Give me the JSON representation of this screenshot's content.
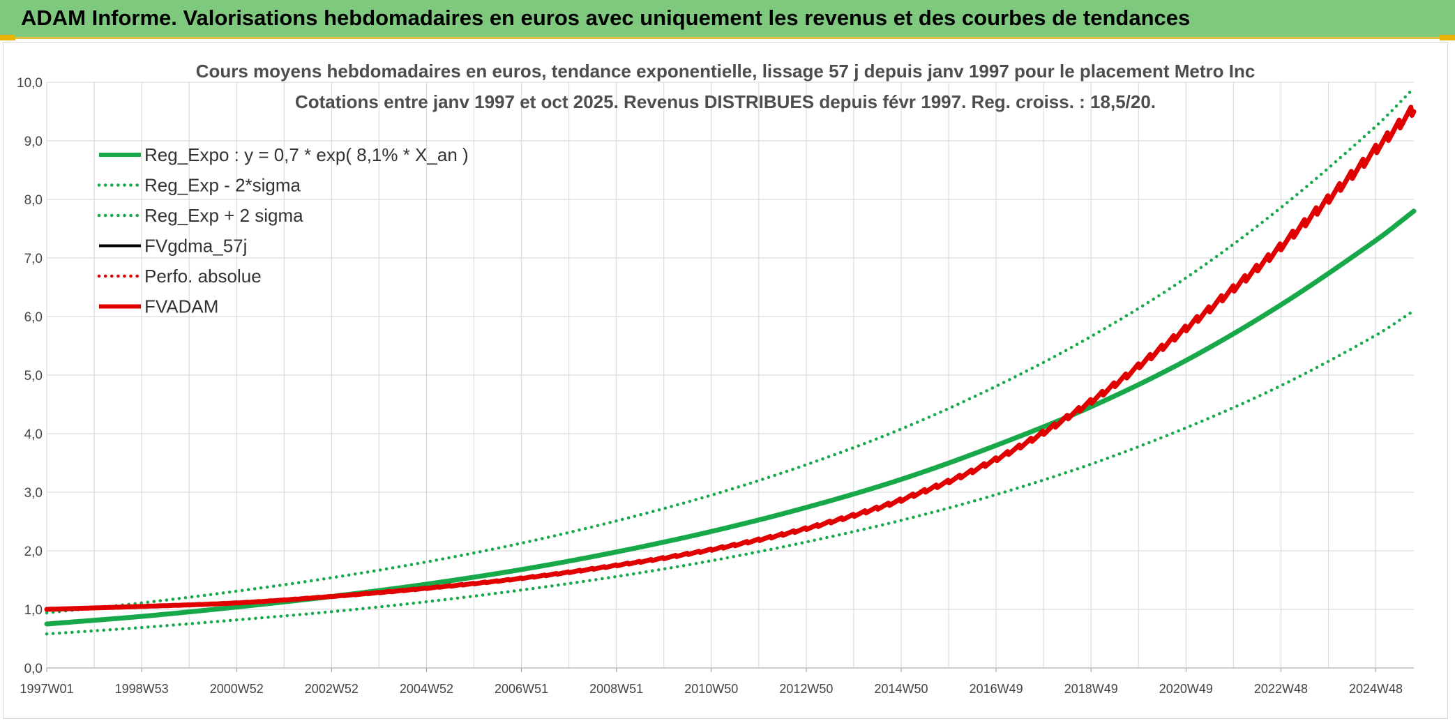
{
  "header": {
    "title": "ADAM Informe. Valorisations hebdomadaires en euros avec uniquement les revenus et des courbes de tendances"
  },
  "colors": {
    "banner": "#7fc97f",
    "green": "#17a84a",
    "red": "#e00000",
    "black": "#000000",
    "grid": "#dcdcdc"
  },
  "chart_data": {
    "type": "line",
    "title": "Cours moyens hebdomadaires en euros, tendance exponentielle, lissage 57 j depuis janv 1997 pour le placement Metro Inc",
    "subtitle": "Cotations entre janv 1997 et oct 2025. Revenus DISTRIBUES depuis févr 1997. Reg. croiss. : 18,5/20.",
    "xlabel": "",
    "ylabel": "",
    "ylim": [
      0,
      10
    ],
    "xlim": [
      1997.0,
      2025.8
    ],
    "grid": true,
    "legend_position": "top-left",
    "y_ticks": [
      "0,0",
      "1,0",
      "2,0",
      "3,0",
      "4,0",
      "5,0",
      "6,0",
      "7,0",
      "8,0",
      "9,0",
      "10,0"
    ],
    "x_ticks": [
      {
        "label": "1997W01",
        "x": 1997.0
      },
      {
        "label": "1998W53",
        "x": 1999.0
      },
      {
        "label": "2000W52",
        "x": 2001.0
      },
      {
        "label": "2002W52",
        "x": 2003.0
      },
      {
        "label": "2004W52",
        "x": 2005.0
      },
      {
        "label": "2006W51",
        "x": 2007.0
      },
      {
        "label": "2008W51",
        "x": 2009.0
      },
      {
        "label": "2010W50",
        "x": 2011.0
      },
      {
        "label": "2012W50",
        "x": 2013.0
      },
      {
        "label": "2014W50",
        "x": 2015.0
      },
      {
        "label": "2016W49",
        "x": 2017.0
      },
      {
        "label": "2018W49",
        "x": 2019.0
      },
      {
        "label": "2020W49",
        "x": 2021.0
      },
      {
        "label": "2022W48",
        "x": 2023.0
      },
      {
        "label": "2024W48",
        "x": 2025.0
      }
    ],
    "series": [
      {
        "name": "Reg_Expo : y = 0,7 * exp( 8,1% *  X_an )",
        "style": "solid-thick",
        "color": "#17a84a",
        "x": [
          1997.0,
          1999.0,
          2001.0,
          2003.0,
          2005.0,
          2007.0,
          2009.0,
          2011.0,
          2013.0,
          2015.0,
          2017.0,
          2019.0,
          2021.0,
          2023.0,
          2025.0,
          2025.8
        ],
        "values": [
          0.75,
          0.88,
          1.04,
          1.22,
          1.43,
          1.68,
          1.98,
          2.33,
          2.74,
          3.22,
          3.8,
          4.46,
          5.25,
          6.2,
          7.3,
          7.8
        ]
      },
      {
        "name": "Reg_Exp - 2*sigma",
        "style": "dotted",
        "color": "#17a84a",
        "x": [
          1997.0,
          1999.0,
          2001.0,
          2003.0,
          2005.0,
          2007.0,
          2009.0,
          2011.0,
          2013.0,
          2015.0,
          2017.0,
          2019.0,
          2021.0,
          2023.0,
          2025.0,
          2025.8
        ],
        "values": [
          0.58,
          0.69,
          0.82,
          0.96,
          1.13,
          1.33,
          1.56,
          1.83,
          2.15,
          2.52,
          2.96,
          3.48,
          4.1,
          4.82,
          5.68,
          6.1
        ]
      },
      {
        "name": "Reg_Exp + 2 sigma",
        "style": "dotted",
        "color": "#17a84a",
        "x": [
          1997.0,
          1999.0,
          2001.0,
          2003.0,
          2005.0,
          2007.0,
          2009.0,
          2011.0,
          2013.0,
          2015.0,
          2017.0,
          2019.0,
          2021.0,
          2023.0,
          2025.0,
          2025.8
        ],
        "values": [
          0.94,
          1.11,
          1.31,
          1.54,
          1.81,
          2.13,
          2.51,
          2.95,
          3.47,
          4.08,
          4.81,
          5.66,
          6.66,
          7.86,
          9.25,
          9.9
        ]
      },
      {
        "name": "FVgdma_57j",
        "style": "solid",
        "color": "#000000",
        "x": [
          1997.0,
          1999.0,
          2001.0,
          2003.0,
          2005.0,
          2007.0,
          2009.0,
          2011.0,
          2013.0,
          2015.0,
          2017.0,
          2019.0,
          2021.0,
          2023.0,
          2025.0,
          2025.8
        ],
        "values": [
          1.0,
          1.05,
          1.11,
          1.22,
          1.36,
          1.53,
          1.75,
          2.02,
          2.38,
          2.87,
          3.56,
          4.55,
          5.8,
          7.2,
          8.85,
          9.55
        ]
      },
      {
        "name": "Perfo. absolue",
        "style": "dotted",
        "color": "#e00000",
        "x": [
          1997.0,
          1999.0,
          2001.0,
          2003.0,
          2005.0,
          2007.0,
          2009.0,
          2011.0,
          2013.0,
          2015.0,
          2017.0,
          2019.0,
          2021.0,
          2023.0,
          2025.0,
          2025.8
        ],
        "values": [
          1.0,
          1.05,
          1.11,
          1.22,
          1.36,
          1.53,
          1.75,
          2.02,
          2.38,
          2.87,
          3.56,
          4.55,
          5.8,
          7.2,
          8.85,
          9.55
        ]
      },
      {
        "name": "FVADAM",
        "style": "solid-thick",
        "color": "#e00000",
        "x": [
          1997.0,
          1999.0,
          2001.0,
          2003.0,
          2005.0,
          2007.0,
          2009.0,
          2011.0,
          2013.0,
          2015.0,
          2017.0,
          2019.0,
          2021.0,
          2023.0,
          2025.0,
          2025.8
        ],
        "values": [
          1.0,
          1.05,
          1.11,
          1.22,
          1.36,
          1.53,
          1.75,
          2.02,
          2.38,
          2.87,
          3.56,
          4.55,
          5.8,
          7.2,
          8.85,
          9.55
        ]
      }
    ]
  }
}
